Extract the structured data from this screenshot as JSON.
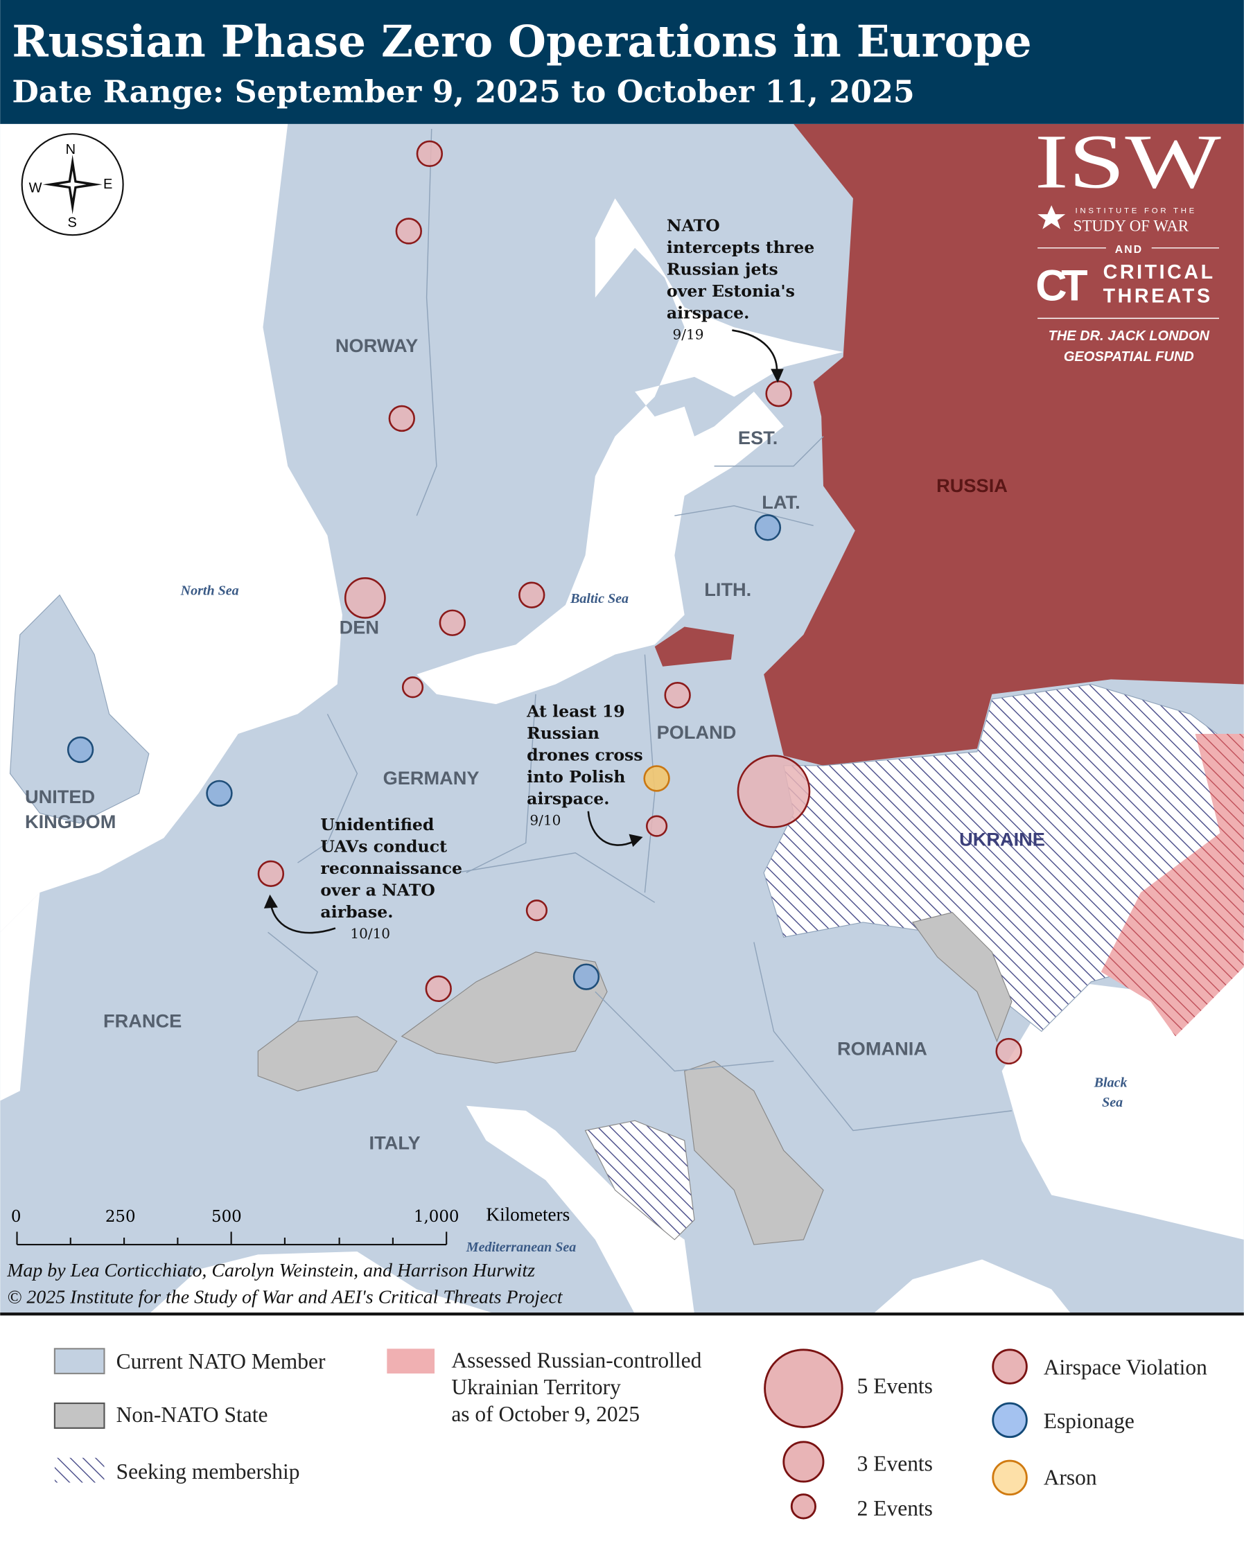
{
  "header": {
    "title": "Russian Phase Zero Operations in Europe",
    "subtitle": "Date Range: September 9, 2025 to October 11, 2025",
    "background": "#003a5c"
  },
  "colors": {
    "nato": "#c3d1e1",
    "non_nato": "#c4c4c4",
    "russia": "#a3494a",
    "occupied": "#f0b0b2",
    "hatch": "#4a4e8a",
    "airspace_fill": "#e8b4b6",
    "airspace_stroke": "#8b1a1a",
    "espionage_fill": "#8fb0dc",
    "espionage_stroke": "#1f4e79",
    "arson_fill": "#f3c66f",
    "arson_stroke": "#c97712"
  },
  "compass": {
    "n": "N",
    "s": "S",
    "e": "E",
    "w": "W"
  },
  "logo": {
    "isw": "ISW",
    "isw_line1": "INSTITUTE FOR THE",
    "isw_line2": "STUDY OF WAR",
    "and": "AND",
    "ct": "CT",
    "ct_line1": "CRITICAL",
    "ct_line2": "THREATS",
    "fund_line1": "THE DR. JACK LONDON",
    "fund_line2": "GEOSPATIAL FUND"
  },
  "map": {
    "countries": {
      "norway": "NORWAY",
      "est": "EST.",
      "lat": "LAT.",
      "lith": "LITH.",
      "russia": "RUSSIA",
      "den": "DEN",
      "poland": "POLAND",
      "germany": "GERMANY",
      "uk1": "UNITED",
      "uk2": "KINGDOM",
      "ukraine": "UKRAINE",
      "france": "FRANCE",
      "romania": "ROMANIA",
      "italy": "ITALY"
    },
    "seas": {
      "north_sea": "North Sea",
      "baltic_sea": "Baltic Sea",
      "black_sea_1": "Black",
      "black_sea_2": "Sea",
      "med_sea": "Mediterranean Sea"
    },
    "annotations": [
      {
        "lines": [
          "NATO",
          "intercepts three",
          "Russian jets",
          "over Estonia's",
          "airspace."
        ],
        "date": "9/19"
      },
      {
        "lines": [
          "At least 19",
          "Russian",
          "drones cross",
          "into Polish",
          "airspace."
        ],
        "date": "9/10"
      },
      {
        "lines": [
          "Unidentified",
          "UAVs conduct",
          "reconnaissance",
          "over a NATO",
          "airbase."
        ],
        "date": "10/10"
      }
    ],
    "markers": [
      {
        "type": "airspace",
        "events": 2
      },
      {
        "type": "airspace",
        "events": 2
      },
      {
        "type": "airspace",
        "events": 2
      },
      {
        "type": "airspace",
        "events": 3
      },
      {
        "type": "airspace",
        "events": 2
      },
      {
        "type": "airspace",
        "events": 2
      },
      {
        "type": "airspace",
        "events": 1
      },
      {
        "type": "airspace",
        "events": 2
      },
      {
        "type": "airspace",
        "events": 2
      },
      {
        "type": "airspace",
        "events": 5
      },
      {
        "type": "airspace",
        "events": 1
      },
      {
        "type": "airspace",
        "events": 2
      },
      {
        "type": "airspace",
        "events": 1
      },
      {
        "type": "airspace",
        "events": 2
      },
      {
        "type": "airspace",
        "events": 2
      },
      {
        "type": "espionage",
        "events": 2
      },
      {
        "type": "espionage",
        "events": 2
      },
      {
        "type": "espionage",
        "events": 2
      },
      {
        "type": "espionage",
        "events": 2
      },
      {
        "type": "arson",
        "events": 2
      }
    ],
    "scale": {
      "ticks": [
        "0",
        "250",
        "500",
        "1,000"
      ],
      "unit": "Kilometers"
    },
    "credits": [
      "Map by Lea Corticchiato, Carolyn Weinstein, and Harrison Hurwitz",
      "© 2025 Institute for the Study of War and AEI's Critical Threats Project"
    ]
  },
  "legend": {
    "nato": "Current NATO Member",
    "non_nato": "Non-NATO State",
    "seeking": "Seeking membership",
    "occupied_1": "Assessed Russian-controlled",
    "occupied_2": "Ukrainian Territory",
    "occupied_3": "as of October 9, 2025",
    "size_5": "5 Events",
    "size_3": "3 Events",
    "size_2": "2 Events",
    "airspace": "Airspace Violation",
    "espionage": "Espionage",
    "arson": "Arson"
  }
}
